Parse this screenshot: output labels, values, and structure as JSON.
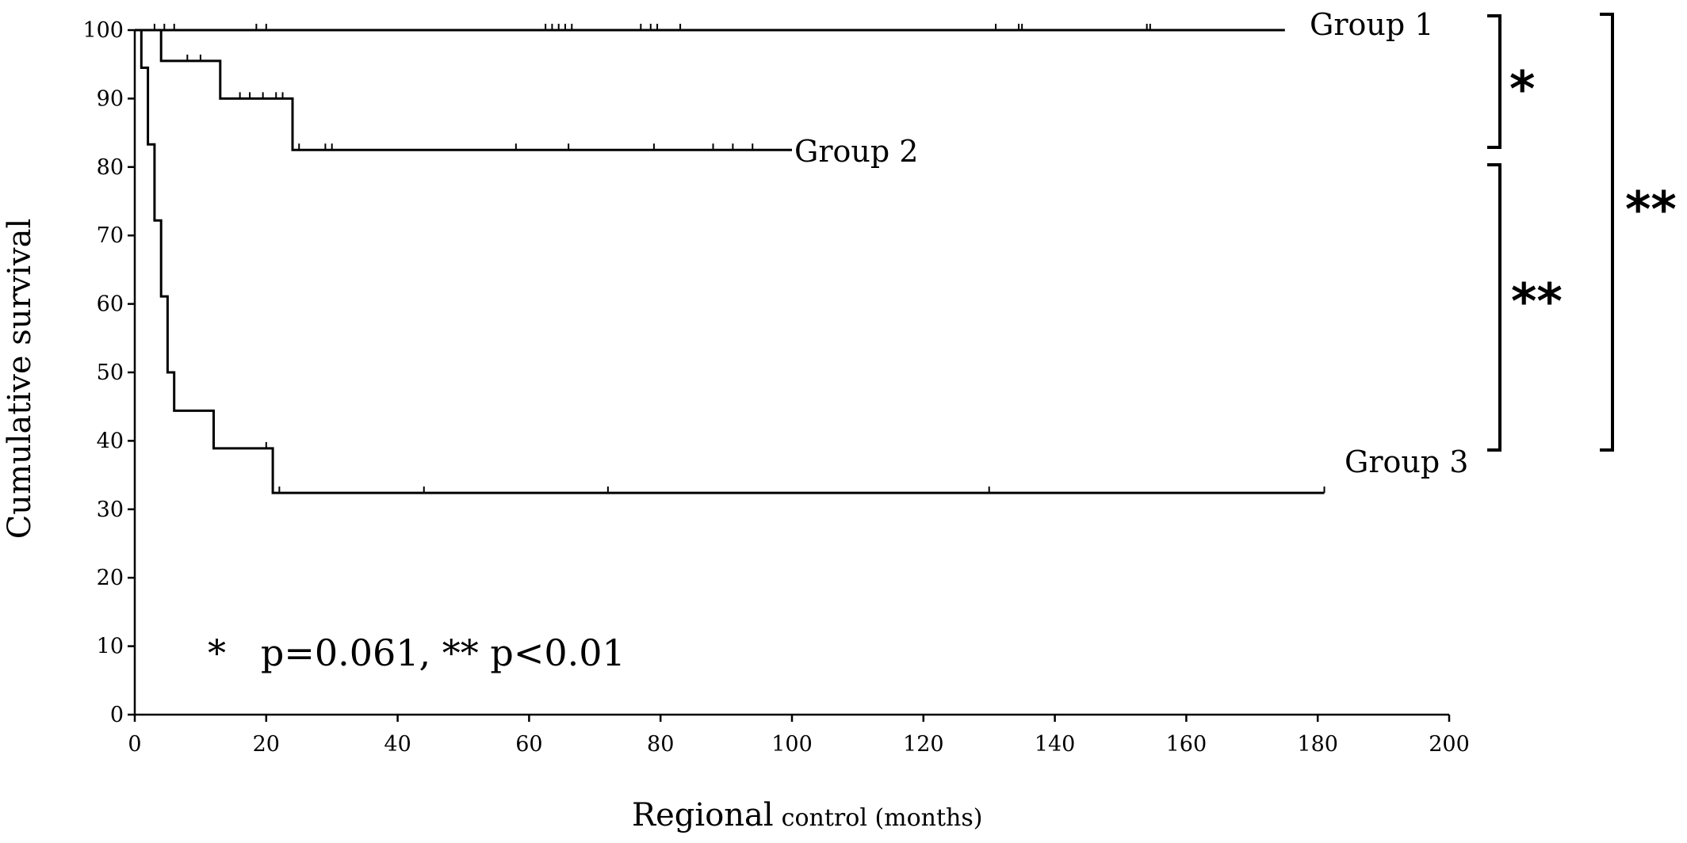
{
  "chart_data": {
    "type": "line",
    "step": true,
    "xlabel_main": "Regional",
    "xlabel_sub": "control (months)",
    "ylabel": "Cumulative survival",
    "xlim": [
      0,
      200
    ],
    "ylim": [
      0,
      100
    ],
    "x_ticks": [
      0,
      20,
      40,
      60,
      80,
      100,
      120,
      140,
      160,
      180,
      200
    ],
    "y_ticks": [
      0,
      10,
      20,
      30,
      40,
      50,
      60,
      70,
      80,
      90,
      100
    ],
    "grid": false,
    "annotation": "*   p=0.061, ** p<0.01",
    "series": [
      {
        "name": "Group 1",
        "steps": [
          [
            0,
            100
          ],
          [
            175,
            100
          ]
        ],
        "censored": [
          [
            3,
            100
          ],
          [
            4.5,
            100
          ],
          [
            6,
            100
          ],
          [
            18.5,
            100
          ],
          [
            20,
            100
          ],
          [
            62.5,
            100
          ],
          [
            63.5,
            100
          ],
          [
            64.5,
            100
          ],
          [
            65.5,
            100
          ],
          [
            66.5,
            100
          ],
          [
            77,
            100
          ],
          [
            78.5,
            100
          ],
          [
            79.5,
            100
          ],
          [
            83,
            100
          ],
          [
            131,
            100
          ],
          [
            134.5,
            100
          ],
          [
            135,
            100
          ],
          [
            154,
            100
          ],
          [
            154.5,
            100
          ]
        ]
      },
      {
        "name": "Group 2",
        "steps": [
          [
            0,
            100
          ],
          [
            4,
            100
          ],
          [
            4,
            95.5
          ],
          [
            13,
            95.5
          ],
          [
            13,
            90.0
          ],
          [
            24,
            90.0
          ],
          [
            24,
            82.5
          ],
          [
            100,
            82.5
          ]
        ],
        "censored": [
          [
            8,
            95.5
          ],
          [
            10,
            95.5
          ],
          [
            16,
            90.0
          ],
          [
            17.5,
            90.0
          ],
          [
            19.5,
            90.0
          ],
          [
            21.5,
            90.0
          ],
          [
            22.5,
            90.0
          ],
          [
            25,
            82.5
          ],
          [
            29,
            82.5
          ],
          [
            30,
            82.5
          ],
          [
            58,
            82.5
          ],
          [
            66,
            82.5
          ],
          [
            79,
            82.5
          ],
          [
            88,
            82.5
          ],
          [
            91,
            82.5
          ],
          [
            94,
            82.5
          ]
        ]
      },
      {
        "name": "Group 3",
        "steps": [
          [
            0,
            100
          ],
          [
            1,
            100
          ],
          [
            1,
            94.5
          ],
          [
            2,
            94.5
          ],
          [
            2,
            83.3
          ],
          [
            3,
            83.3
          ],
          [
            3,
            72.2
          ],
          [
            4,
            72.2
          ],
          [
            4,
            61.1
          ],
          [
            5,
            61.1
          ],
          [
            5,
            50.0
          ],
          [
            6,
            50.0
          ],
          [
            6,
            44.4
          ],
          [
            12,
            44.4
          ],
          [
            12,
            38.9
          ],
          [
            21,
            38.9
          ],
          [
            21,
            32.4
          ],
          [
            181,
            32.4
          ]
        ],
        "censored": [
          [
            20,
            38.9
          ],
          [
            22,
            32.4
          ],
          [
            44,
            32.4
          ],
          [
            72,
            32.4
          ],
          [
            130,
            32.4
          ],
          [
            181,
            32.4
          ]
        ]
      }
    ],
    "comparisons": [
      {
        "between": [
          "Group 1",
          "Group 2"
        ],
        "label": "*"
      },
      {
        "between": [
          "Group 2",
          "Group 3"
        ],
        "label": "**"
      },
      {
        "between": [
          "Group 1",
          "Group 3"
        ],
        "label": "**"
      }
    ]
  }
}
